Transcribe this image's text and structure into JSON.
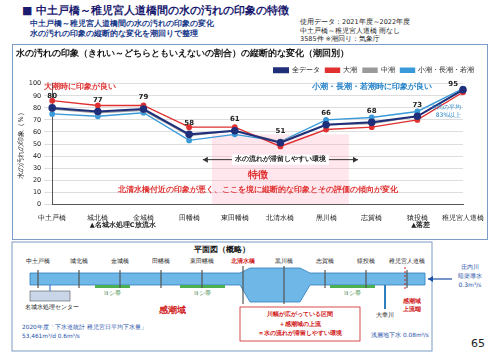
{
  "header": {
    "title": "■ 中土戸橋～稚児宮人道橋間の水の汚れの印象の特徴",
    "subtitle": [
      "中土戸橋～稚児宮人道橋間の水の汚れの印象の変化",
      "水の汚れの印象の縦断的な変化を潮回りで整理"
    ],
    "data_note": [
      "使用データ：2021年度～2022年度",
      "中土戸橋～稚児宮人道橋 雨なし",
      "3585件 ※潮回り：気象庁"
    ]
  },
  "chart_data": {
    "type": "line",
    "title": "水の汚れの印象（きれい～どちらともいえないの割合）の縦断的な変化（潮回別）",
    "y_label": "水の汚れの印象（%）",
    "categories": [
      "中土戸橋",
      "城北橋",
      "金城橋",
      "田幡橋",
      "東田幡橋",
      "北清水橋",
      "黒川橋",
      "志賀橋",
      "猿投橋",
      "稚児宮人道橋"
    ],
    "series": [
      {
        "name": "全データ",
        "color": "#1f2f7a",
        "marker": "circle",
        "data_labels": true,
        "values": [
          80,
          77,
          79,
          58,
          61,
          51,
          66,
          68,
          73,
          95
        ]
      },
      {
        "name": "大潮",
        "color": "#e03030",
        "marker": "circle",
        "values": [
          86,
          82,
          82,
          64,
          64,
          48,
          62,
          64,
          70,
          93
        ]
      },
      {
        "name": "中潮",
        "color": "#9a9a9a",
        "marker": "circle",
        "values": [
          79,
          76,
          78,
          57,
          61,
          52,
          66,
          67,
          73,
          95
        ]
      },
      {
        "name": "小潮・長潮・若潮",
        "color": "#3a9ad9",
        "marker": "circle",
        "values": [
          75,
          73,
          76,
          53,
          58,
          52,
          70,
          72,
          77,
          96
        ]
      }
    ],
    "ylim": [
      0,
      100
    ],
    "yticks": [
      0,
      10,
      20,
      30,
      40,
      50,
      60,
      70,
      80,
      90,
      100
    ],
    "grid": true,
    "legend": "top",
    "annotations": {
      "left_note": "大潮時に印象が良い",
      "right_note": "小潮・長潮・若潮時に印象が良い",
      "citizen_note": [
        "市民の平均",
        "83%以上"
      ],
      "stagnation": "水の流れが滞留しやすい環境",
      "feature_title": "特徴",
      "feature_text": "北清水橋付近の印象が悪く、ここを境に縦断的な印象とその評価の傾向が変化",
      "below_axis": [
        "▲名城水処理C放流水",
        "▲落差"
      ]
    }
  },
  "plan": {
    "title": "平面図（概略）",
    "facility": "名城水処理センター",
    "reeds": "ヨシ帯",
    "tidal": "感潮域",
    "tributary": "大幸川",
    "sewer": [
      "2020年度「下水道統計 稚児宮日平均下水量」",
      "53,461m³/d 0.6m³/s"
    ],
    "stagnation": [
      "川幅が広がっている区間",
      "＋感潮域の上流",
      "＝水の流れが滞留しやすい環境"
    ],
    "tidal_limit": [
      "感潮域",
      "上流端"
    ],
    "groundwater": "浅層地下水 0.08m³/s",
    "inflow": [
      "庄内川",
      "暗渠導水",
      "0.3m³/s"
    ]
  },
  "page_number": "65"
}
